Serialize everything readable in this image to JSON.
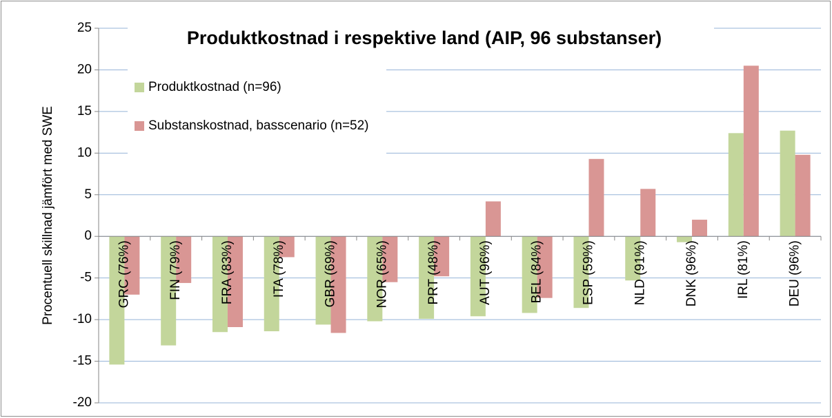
{
  "chart_data": {
    "type": "bar",
    "title": "Produktkostnad i respektive land (AIP, 96 substanser)",
    "y_label": "Procentuell skillnad jämfört med SWE",
    "categories": [
      "GRC (76%)",
      "FIN (79%)",
      "FRA (83%)",
      "ITA (78%)",
      "GBR (69%)",
      "NOR (65%)",
      "PRT (48%)",
      "AUT (96%)",
      "BEL (84%)",
      "ESP (59%)",
      "NLD (91%)",
      "DNK (96%)",
      "IRL (81%)",
      "DEU (96%)"
    ],
    "series": [
      {
        "name": "Produktkostnad (n=96)",
        "color": "#c3d69b",
        "values": [
          -15.4,
          -13.1,
          -11.5,
          -11.4,
          -10.6,
          -10.2,
          -9.9,
          -9.6,
          -9.2,
          -8.6,
          -5.3,
          -0.7,
          12.4,
          12.7
        ]
      },
      {
        "name": "Substanskostnad, basscenario (n=52)",
        "color": "#d99694",
        "values": [
          -7.0,
          -5.6,
          -10.9,
          -2.5,
          -11.6,
          -5.5,
          -4.8,
          4.2,
          -7.4,
          9.3,
          5.7,
          2.0,
          20.5,
          9.8
        ]
      }
    ],
    "ylim": [
      -20,
      25
    ],
    "yticks": [
      -20,
      -15,
      -10,
      -5,
      0,
      5,
      10,
      15,
      20,
      25
    ],
    "grid": true,
    "legend": "upper left"
  }
}
